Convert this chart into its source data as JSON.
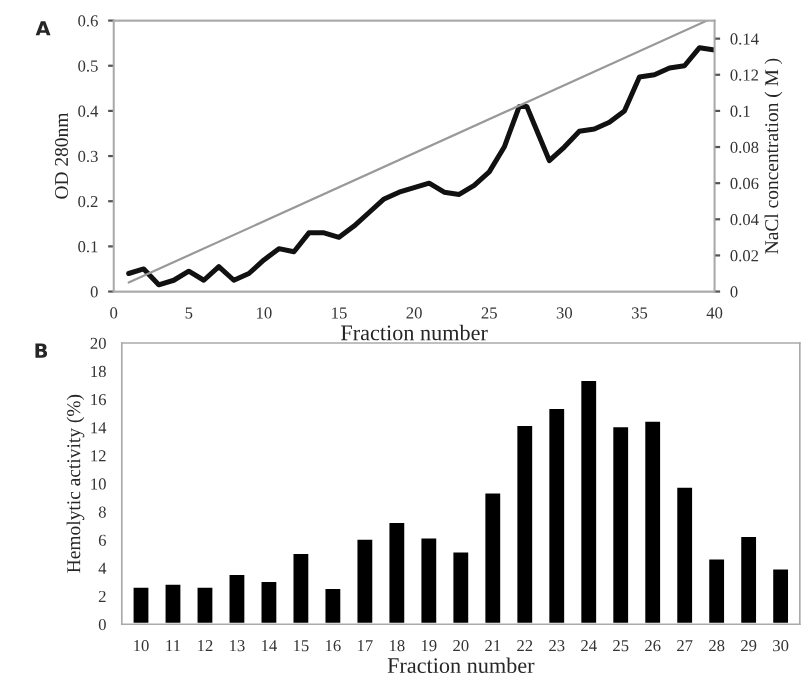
{
  "chart_data": [
    {
      "type": "line",
      "xlabel": "Fraction number",
      "ylabel": "OD 280nm",
      "y2label": "NaCl concentration ( M )",
      "annotations": [
        "A"
      ],
      "xlim": [
        0,
        40
      ],
      "xticks": [
        0,
        5,
        10,
        15,
        20,
        25,
        30,
        35,
        40
      ],
      "ylim": [
        0,
        0.6
      ],
      "yticks": [
        0,
        0.1,
        0.2,
        0.3,
        0.4,
        0.5,
        0.6
      ],
      "y2lim": [
        0,
        0.15
      ],
      "y2ticks": [
        0,
        0.02,
        0.04,
        0.06,
        0.08,
        0.1,
        0.12,
        0.14
      ],
      "grid": false,
      "legend": false,
      "series": [
        {
          "color": "#111111",
          "x": [
            1,
            2,
            3,
            4,
            5,
            6,
            7,
            8,
            9,
            10,
            11,
            12,
            13,
            14,
            15,
            16,
            17,
            18,
            19,
            20,
            21,
            22,
            23,
            24,
            25,
            26,
            27,
            27.5,
            28,
            29,
            30,
            31,
            32,
            33,
            34,
            35,
            36,
            37,
            38,
            39,
            40
          ],
          "values": [
            0.04,
            0.05,
            0.015,
            0.025,
            0.045,
            0.025,
            0.055,
            0.025,
            0.04,
            0.07,
            0.095,
            0.088,
            0.13,
            0.13,
            0.12,
            0.145,
            0.175,
            0.205,
            0.22,
            0.23,
            0.24,
            0.22,
            0.215,
            0.235,
            0.265,
            0.32,
            0.41,
            0.41,
            0.37,
            0.29,
            0.32,
            0.355,
            0.36,
            0.375,
            0.4,
            0.475,
            0.48,
            0.495,
            0.5,
            0.54,
            0.535
          ]
        },
        {
          "color": "#999999",
          "axis": "y2",
          "x": [
            1,
            39.5
          ],
          "values": [
            0.005,
            0.15
          ]
        }
      ]
    },
    {
      "type": "bar",
      "xlabel": "Fraction number",
      "ylabel": "Hemolytic activity (%)",
      "annotations": [
        "B"
      ],
      "categories": [
        "10",
        "11",
        "12",
        "13",
        "14",
        "15",
        "16",
        "17",
        "18",
        "19",
        "20",
        "21",
        "22",
        "23",
        "24",
        "25",
        "26",
        "27",
        "28",
        "29",
        "30"
      ],
      "ylim": [
        0,
        20
      ],
      "yticks": [
        0,
        2,
        4,
        6,
        8,
        10,
        12,
        14,
        16,
        18,
        20
      ],
      "grid": false,
      "legend": false,
      "series": [
        {
          "color": "#000000",
          "values": [
            2.7,
            2.9,
            2.7,
            3.6,
            3.1,
            5.1,
            2.6,
            6.1,
            7.3,
            6.2,
            5.2,
            9.4,
            14.2,
            15.4,
            17.4,
            14.1,
            14.5,
            9.8,
            4.7,
            6.3,
            4.0
          ]
        }
      ]
    }
  ]
}
